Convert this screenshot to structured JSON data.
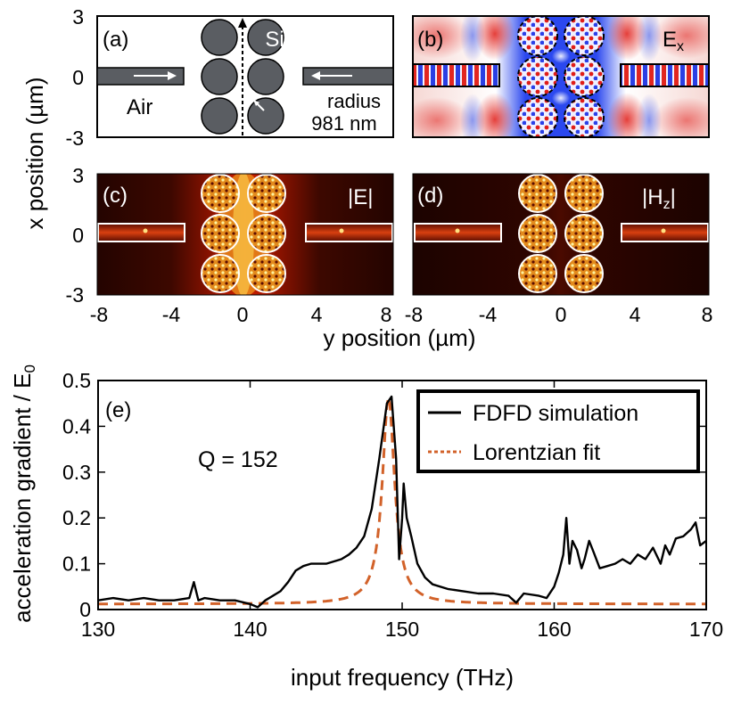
{
  "figure": {
    "panel_labels": {
      "a": "(a)",
      "b": "(b)",
      "c": "(c)",
      "d": "(d)",
      "e": "(e)"
    },
    "panel_a": {
      "material": "Si",
      "medium": "Air",
      "radius_line1": "radius",
      "radius_line2": "981 nm"
    },
    "field_labels": {
      "ex_main": "E",
      "ex_sub": "x",
      "abs_e": "|E|",
      "hz_main": "|H",
      "hz_sub": "z",
      "hz_close": "|"
    },
    "top_axes": {
      "x_title": "x position (µm)",
      "y_title": "y position (µm)",
      "x_ticks": [
        "3",
        "0",
        "-3"
      ],
      "y_ticks": [
        "-8",
        "-4",
        "0",
        "4",
        "8"
      ]
    },
    "colors": {
      "resonator": "#5a5d62",
      "black": "#000000",
      "fit": "#d2622a",
      "field_red": "#e0241c",
      "field_blue": "#1a38e6",
      "map_dark": "#1c0300"
    }
  },
  "chart_data": {
    "type": "line",
    "title": "",
    "xlabel": "input frequency (THz)",
    "ylabel_main": "acceleration gradient / E",
    "ylabel_sub": "0",
    "xlim": [
      130,
      170
    ],
    "ylim": [
      0,
      0.5
    ],
    "x_ticks": [
      "130",
      "140",
      "150",
      "160",
      "170"
    ],
    "y_ticks": [
      "0",
      "0.1",
      "0.2",
      "0.3",
      "0.4",
      "0.5"
    ],
    "legend": {
      "placement": "top-right",
      "entries": [
        "FDFD simulation",
        "Lorentzian fit"
      ]
    },
    "annotation": "Q = 152",
    "series": [
      {
        "name": "FDFD simulation",
        "style": "solid",
        "x": [
          130,
          131,
          132,
          133,
          134,
          135,
          136,
          136.3,
          136.6,
          137,
          138,
          139,
          140,
          140.5,
          141,
          142,
          142.5,
          143,
          143.5,
          144,
          145,
          146,
          146.5,
          147,
          147.5,
          148,
          148.5,
          149,
          149.3,
          149.6,
          149.8,
          150.0,
          150.1,
          150.3,
          150.6,
          151,
          151.5,
          152,
          153,
          154,
          155,
          156,
          157,
          157.5,
          158,
          159,
          159.5,
          160,
          160.3,
          160.6,
          160.8,
          161,
          161.2,
          161.5,
          161.8,
          162,
          162.3,
          162.6,
          163,
          163.5,
          164,
          164.5,
          165,
          165.5,
          166,
          166.5,
          167,
          167.3,
          167.6,
          168,
          168.5,
          169,
          169.3,
          169.6,
          170
        ],
        "values": [
          0.02,
          0.025,
          0.02,
          0.025,
          0.02,
          0.02,
          0.025,
          0.06,
          0.02,
          0.025,
          0.02,
          0.02,
          0.012,
          0.005,
          0.02,
          0.04,
          0.06,
          0.085,
          0.095,
          0.1,
          0.1,
          0.11,
          0.12,
          0.135,
          0.16,
          0.22,
          0.33,
          0.45,
          0.465,
          0.33,
          0.11,
          0.2,
          0.275,
          0.2,
          0.16,
          0.1,
          0.07,
          0.055,
          0.045,
          0.04,
          0.035,
          0.035,
          0.03,
          0.015,
          0.035,
          0.03,
          0.025,
          0.05,
          0.08,
          0.12,
          0.2,
          0.1,
          0.15,
          0.13,
          0.09,
          0.11,
          0.15,
          0.125,
          0.09,
          0.095,
          0.1,
          0.11,
          0.1,
          0.12,
          0.11,
          0.135,
          0.1,
          0.14,
          0.12,
          0.155,
          0.16,
          0.175,
          0.19,
          0.14,
          0.15
        ]
      },
      {
        "name": "Lorentzian fit",
        "style": "dashed",
        "model": {
          "center": 149.1,
          "peak": 0.463,
          "half_width": 0.49,
          "baseline": 0.012
        }
      }
    ]
  }
}
